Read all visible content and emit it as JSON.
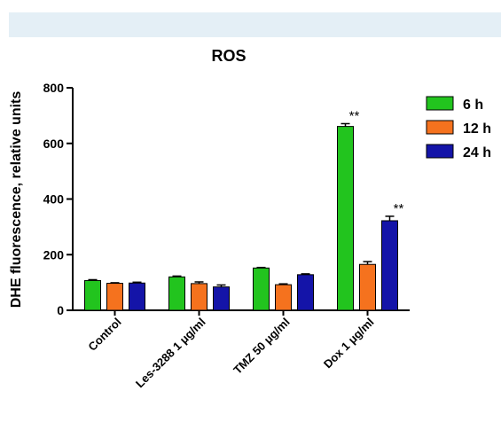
{
  "chart_data": {
    "type": "bar",
    "title": "ROS",
    "xlabel": "",
    "ylabel": "DHE fluorescence, relative units",
    "ylim": [
      0,
      800
    ],
    "yticks": [
      0,
      200,
      400,
      600,
      800
    ],
    "categories": [
      "Control",
      "Les-3288 1 μg/ml",
      "TMZ 50 μg/ml",
      "Dox 1 μg/ml"
    ],
    "series": [
      {
        "name": "6 h",
        "color": "#22c41e",
        "values": [
          107,
          120,
          152,
          661
        ],
        "errors": [
          3,
          3,
          2,
          10
        ]
      },
      {
        "name": "12 h",
        "color": "#f5721e",
        "values": [
          97,
          96,
          92,
          165
        ],
        "errors": [
          2,
          6,
          3,
          10
        ]
      },
      {
        "name": "24 h",
        "color": "#1414a8",
        "values": [
          98,
          84,
          128,
          322
        ],
        "errors": [
          3,
          7,
          3,
          16
        ]
      }
    ],
    "annotations": [
      {
        "category": "Dox 1 μg/ml",
        "series": "6 h",
        "text": "**"
      },
      {
        "category": "Dox 1 μg/ml",
        "series": "24 h",
        "text": "**"
      }
    ],
    "legend_position": "top-right",
    "grid": false
  }
}
